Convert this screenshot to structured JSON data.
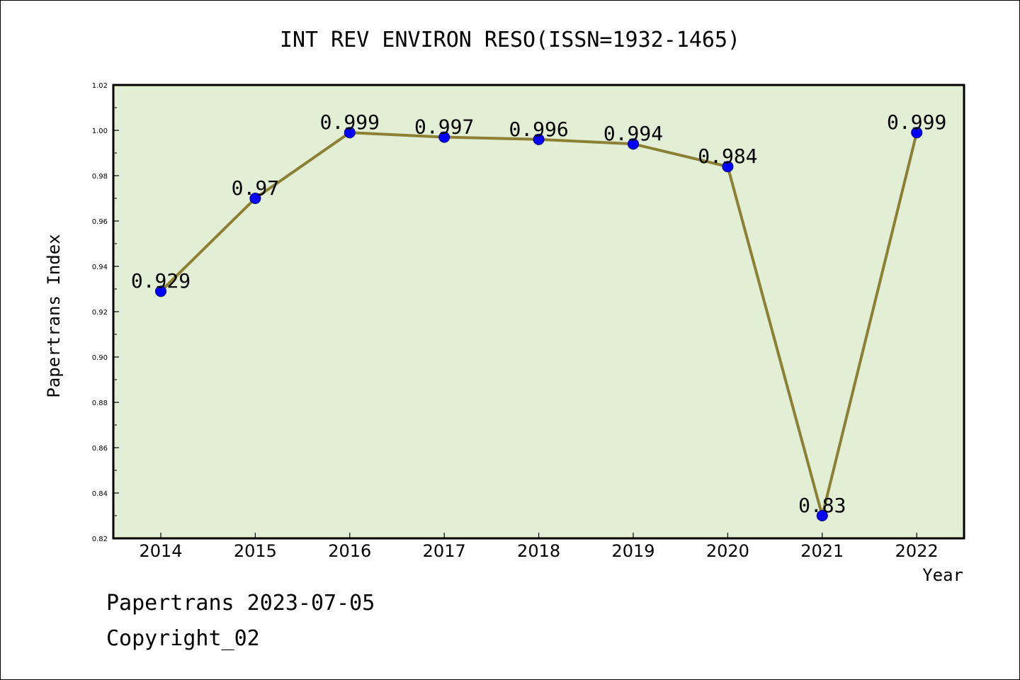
{
  "chart_data": {
    "type": "line",
    "title": "INT REV ENVIRON RESO(ISSN=1932-1465)",
    "xlabel": "Year",
    "ylabel": "Papertrans Index",
    "categories": [
      "2014",
      "2015",
      "2016",
      "2017",
      "2018",
      "2019",
      "2020",
      "2021",
      "2022"
    ],
    "values": [
      0.929,
      0.97,
      0.999,
      0.997,
      0.996,
      0.994,
      0.984,
      0.83,
      0.999
    ],
    "data_labels": [
      "0.929",
      "0.97",
      "0.999",
      "0.997",
      "0.996",
      "0.994",
      "0.984",
      "0.83",
      "0.999"
    ],
    "ylim": [
      0.82,
      1.02
    ],
    "yticks": [
      "0.82",
      "0.84",
      "0.86",
      "0.88",
      "0.90",
      "0.92",
      "0.94",
      "0.96",
      "0.98",
      "1.00",
      "1.02"
    ],
    "grid": false,
    "legend": "none",
    "colors": {
      "plot_background": "#e2efd5",
      "line": "#8c8034",
      "marker_fill": "#0000ff",
      "marker_edge": "#000080"
    }
  },
  "footer": {
    "line1": "Papertrans 2023-07-05",
    "line2": "Copyright_02"
  }
}
